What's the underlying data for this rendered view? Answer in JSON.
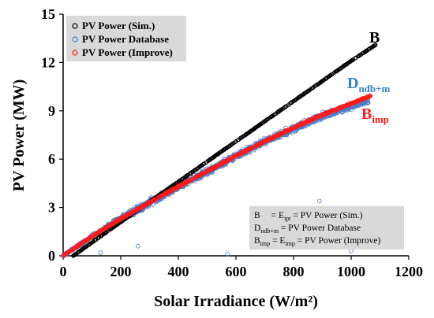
{
  "chart_data": {
    "type": "scatter",
    "xlabel": "Solar Irradiance (W/m²)",
    "ylabel": "PV Power (MW)",
    "xlim": [
      0,
      1200
    ],
    "ylim": [
      0,
      15
    ],
    "xticks": [
      "0",
      "200",
      "400",
      "600",
      "800",
      "1000",
      "1200"
    ],
    "yticks": [
      "0",
      "3",
      "6",
      "9",
      "12",
      "15"
    ],
    "grid": false,
    "legend": {
      "placement": "top-left",
      "entries": [
        "PV Power (Sim.)",
        "PV Power Database",
        "PV Power (Improve)"
      ]
    },
    "series": [
      {
        "name": "PV Power (Sim.)",
        "color": "#000000",
        "marker": "circle-open",
        "x_range": [
          35,
          1085
        ],
        "y_at_x": [
          [
            35,
            0.0
          ],
          [
            200,
            2.1
          ],
          [
            400,
            4.6
          ],
          [
            600,
            7.1
          ],
          [
            800,
            9.6
          ],
          [
            1000,
            12.1
          ],
          [
            1085,
            13.1
          ]
        ]
      },
      {
        "name": "PV Power Database",
        "color": "#4a7fc9",
        "marker": "circle-open",
        "x_range": [
          0,
          1060
        ],
        "y_at_x": [
          [
            0,
            0.0
          ],
          [
            100,
            1.2
          ],
          [
            200,
            2.3
          ],
          [
            300,
            3.3
          ],
          [
            400,
            4.3
          ],
          [
            500,
            5.2
          ],
          [
            600,
            6.2
          ],
          [
            700,
            7.1
          ],
          [
            800,
            7.9
          ],
          [
            900,
            8.7
          ],
          [
            1000,
            9.3
          ],
          [
            1050,
            9.6
          ]
        ],
        "outliers": [
          [
            570,
            0.1
          ],
          [
            890,
            3.4
          ],
          [
            260,
            0.6
          ],
          [
            1000,
            0.3
          ],
          [
            130,
            0.2
          ]
        ]
      },
      {
        "name": "PV Power (Improve)",
        "color": "#ff1a1a",
        "marker": "circle-open",
        "x_range": [
          0,
          1070
        ],
        "y_at_x": [
          [
            0,
            0.0
          ],
          [
            100,
            1.2
          ],
          [
            200,
            2.3
          ],
          [
            300,
            3.3
          ],
          [
            400,
            4.3
          ],
          [
            500,
            5.25
          ],
          [
            600,
            6.2
          ],
          [
            700,
            7.1
          ],
          [
            800,
            7.95
          ],
          [
            900,
            8.75
          ],
          [
            1000,
            9.45
          ],
          [
            1070,
            9.95
          ]
        ]
      }
    ],
    "annotations": [
      {
        "main": "B",
        "sub": "",
        "color": "#000000",
        "at": [
          1050,
          14.0
        ]
      },
      {
        "main": "D",
        "sub": "ndb+m",
        "color": "#2e7fd0",
        "at": [
          990,
          11.7
        ]
      },
      {
        "main": "B",
        "sub": "imp",
        "color": "#ff1a1a",
        "at": [
          1000,
          9.2
        ]
      }
    ],
    "note_box": {
      "placement": "bottom-right",
      "lines": [
        {
          "a": "B",
          "a_sub": "",
          "b": "= E",
          "b_sub": "ipt",
          "c": " = PV Power (Sim.)"
        },
        {
          "a": "D",
          "a_sub": "ndb+m",
          "b": "",
          "b_sub": "",
          "c": " = PV Power Database"
        },
        {
          "a": "B",
          "a_sub": "imp",
          "b": " = E",
          "b_sub": "imp",
          "c": " = PV Power (Improve)"
        }
      ]
    }
  }
}
